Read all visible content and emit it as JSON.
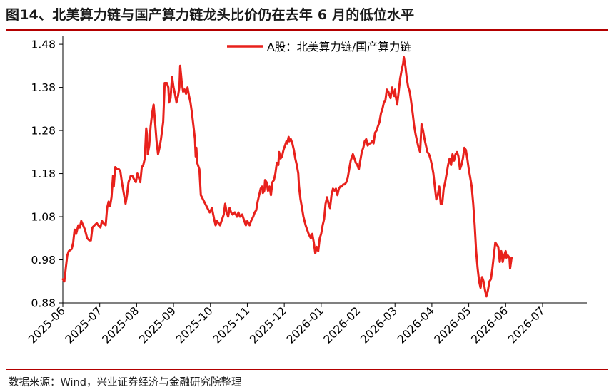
{
  "figure": {
    "title": "图14、北美算力链与国产算力链龙头比价仍在去年 6 月的低位水平",
    "source": "数据来源：Wind，兴业证券经济与金融研究院整理"
  },
  "chart_data": {
    "type": "line",
    "title": "",
    "xlabel": "",
    "ylabel": "",
    "ylim": [
      0.88,
      1.5
    ],
    "yticks": [
      "0.88",
      "0.98",
      "1.08",
      "1.18",
      "1.28",
      "1.38",
      "1.48"
    ],
    "xticks": [
      "2025-06",
      "2025-07",
      "2025-08",
      "2025-09",
      "2025-10",
      "2025-11",
      "2025-12",
      "2026-01",
      "2026-02",
      "2026-03",
      "2026-04",
      "2026-05",
      "2026-06",
      "2026-07"
    ],
    "xlim_months": [
      0,
      14.2
    ],
    "grid": false,
    "legend_position": "top-center",
    "color": "#e8211c",
    "series": [
      {
        "name": "A股：北美算力链/国产算力链",
        "points": [
          [
            0.0,
            0.935
          ],
          [
            0.04,
            0.93
          ],
          [
            0.08,
            0.96
          ],
          [
            0.12,
            0.99
          ],
          [
            0.16,
            1.0
          ],
          [
            0.24,
            1.005
          ],
          [
            0.28,
            1.02
          ],
          [
            0.32,
            1.05
          ],
          [
            0.36,
            1.04
          ],
          [
            0.42,
            1.06
          ],
          [
            0.46,
            1.055
          ],
          [
            0.5,
            1.07
          ],
          [
            0.55,
            1.06
          ],
          [
            0.6,
            1.05
          ],
          [
            0.66,
            1.03
          ],
          [
            0.72,
            1.025
          ],
          [
            0.76,
            1.025
          ],
          [
            0.8,
            1.055
          ],
          [
            0.86,
            1.06
          ],
          [
            0.92,
            1.065
          ],
          [
            0.96,
            1.06
          ],
          [
            1.02,
            1.055
          ],
          [
            1.06,
            1.07
          ],
          [
            1.1,
            1.065
          ],
          [
            1.16,
            1.06
          ],
          [
            1.2,
            1.1
          ],
          [
            1.24,
            1.115
          ],
          [
            1.28,
            1.105
          ],
          [
            1.32,
            1.125
          ],
          [
            1.36,
            1.175
          ],
          [
            1.38,
            1.15
          ],
          [
            1.42,
            1.195
          ],
          [
            1.46,
            1.19
          ],
          [
            1.52,
            1.19
          ],
          [
            1.56,
            1.185
          ],
          [
            1.6,
            1.16
          ],
          [
            1.66,
            1.13
          ],
          [
            1.7,
            1.11
          ],
          [
            1.74,
            1.13
          ],
          [
            1.78,
            1.16
          ],
          [
            1.84,
            1.175
          ],
          [
            1.88,
            1.175
          ],
          [
            1.94,
            1.165
          ],
          [
            1.98,
            1.16
          ],
          [
            2.02,
            1.18
          ],
          [
            2.06,
            1.17
          ],
          [
            2.1,
            1.16
          ],
          [
            2.14,
            1.195
          ],
          [
            2.18,
            1.2
          ],
          [
            2.22,
            1.215
          ],
          [
            2.26,
            1.285
          ],
          [
            2.28,
            1.27
          ],
          [
            2.3,
            1.225
          ],
          [
            2.34,
            1.245
          ],
          [
            2.38,
            1.29
          ],
          [
            2.42,
            1.32
          ],
          [
            2.46,
            1.34
          ],
          [
            2.5,
            1.3
          ],
          [
            2.54,
            1.255
          ],
          [
            2.58,
            1.225
          ],
          [
            2.62,
            1.24
          ],
          [
            2.66,
            1.26
          ],
          [
            2.72,
            1.3
          ],
          [
            2.76,
            1.39
          ],
          [
            2.82,
            1.39
          ],
          [
            2.86,
            1.38
          ],
          [
            2.88,
            1.345
          ],
          [
            2.92,
            1.355
          ],
          [
            2.96,
            1.405
          ],
          [
            3.0,
            1.38
          ],
          [
            3.04,
            1.365
          ],
          [
            3.08,
            1.345
          ],
          [
            3.12,
            1.36
          ],
          [
            3.16,
            1.38
          ],
          [
            3.18,
            1.43
          ],
          [
            3.22,
            1.395
          ],
          [
            3.26,
            1.37
          ],
          [
            3.3,
            1.375
          ],
          [
            3.34,
            1.365
          ],
          [
            3.38,
            1.38
          ],
          [
            3.42,
            1.36
          ],
          [
            3.46,
            1.345
          ],
          [
            3.5,
            1.32
          ],
          [
            3.54,
            1.29
          ],
          [
            3.58,
            1.26
          ],
          [
            3.6,
            1.22
          ],
          [
            3.62,
            1.24
          ],
          [
            3.64,
            1.205
          ],
          [
            3.7,
            1.19
          ],
          [
            3.74,
            1.13
          ],
          [
            3.8,
            1.12
          ],
          [
            3.86,
            1.11
          ],
          [
            3.92,
            1.1
          ],
          [
            3.98,
            1.09
          ],
          [
            4.04,
            1.1
          ],
          [
            4.1,
            1.075
          ],
          [
            4.14,
            1.06
          ],
          [
            4.18,
            1.07
          ],
          [
            4.22,
            1.065
          ],
          [
            4.26,
            1.06
          ],
          [
            4.32,
            1.075
          ],
          [
            4.36,
            1.085
          ],
          [
            4.4,
            1.11
          ],
          [
            4.44,
            1.09
          ],
          [
            4.48,
            1.08
          ],
          [
            4.52,
            1.1
          ],
          [
            4.56,
            1.09
          ],
          [
            4.6,
            1.085
          ],
          [
            4.66,
            1.09
          ],
          [
            4.72,
            1.08
          ],
          [
            4.76,
            1.09
          ],
          [
            4.8,
            1.08
          ],
          [
            4.86,
            1.085
          ],
          [
            4.92,
            1.07
          ],
          [
            4.96,
            1.06
          ],
          [
            5.0,
            1.07
          ],
          [
            5.06,
            1.06
          ],
          [
            5.1,
            1.07
          ],
          [
            5.16,
            1.08
          ],
          [
            5.2,
            1.09
          ],
          [
            5.24,
            1.095
          ],
          [
            5.28,
            1.115
          ],
          [
            5.32,
            1.13
          ],
          [
            5.36,
            1.145
          ],
          [
            5.4,
            1.15
          ],
          [
            5.42,
            1.135
          ],
          [
            5.46,
            1.14
          ],
          [
            5.48,
            1.165
          ],
          [
            5.52,
            1.16
          ],
          [
            5.56,
            1.14
          ],
          [
            5.6,
            1.15
          ],
          [
            5.64,
            1.13
          ],
          [
            5.68,
            1.16
          ],
          [
            5.72,
            1.165
          ],
          [
            5.76,
            1.18
          ],
          [
            5.8,
            1.205
          ],
          [
            5.84,
            1.2
          ],
          [
            5.86,
            1.23
          ],
          [
            5.9,
            1.215
          ],
          [
            5.94,
            1.22
          ],
          [
            5.98,
            1.235
          ],
          [
            6.02,
            1.245
          ],
          [
            6.06,
            1.255
          ],
          [
            6.08,
            1.25
          ],
          [
            6.12,
            1.265
          ],
          [
            6.14,
            1.255
          ],
          [
            6.18,
            1.26
          ],
          [
            6.22,
            1.25
          ],
          [
            6.26,
            1.235
          ],
          [
            6.3,
            1.215
          ],
          [
            6.34,
            1.2
          ],
          [
            6.38,
            1.18
          ],
          [
            6.4,
            1.15
          ],
          [
            6.44,
            1.12
          ],
          [
            6.48,
            1.1
          ],
          [
            6.52,
            1.08
          ],
          [
            6.58,
            1.06
          ],
          [
            6.62,
            1.05
          ],
          [
            6.66,
            1.04
          ],
          [
            6.72,
            1.03
          ],
          [
            6.76,
            1.04
          ],
          [
            6.8,
            1.02
          ],
          [
            6.84,
            0.995
          ],
          [
            6.88,
            1.01
          ],
          [
            6.92,
            1.0
          ],
          [
            6.96,
            1.03
          ],
          [
            7.0,
            1.04
          ],
          [
            7.04,
            1.06
          ],
          [
            7.08,
            1.075
          ],
          [
            7.12,
            1.11
          ],
          [
            7.16,
            1.125
          ],
          [
            7.2,
            1.11
          ],
          [
            7.24,
            1.1
          ],
          [
            7.28,
            1.13
          ],
          [
            7.32,
            1.145
          ],
          [
            7.36,
            1.14
          ],
          [
            7.4,
            1.145
          ],
          [
            7.44,
            1.13
          ],
          [
            7.48,
            1.145
          ],
          [
            7.52,
            1.15
          ],
          [
            7.56,
            1.15
          ],
          [
            7.6,
            1.155
          ],
          [
            7.64,
            1.155
          ],
          [
            7.68,
            1.16
          ],
          [
            7.72,
            1.17
          ],
          [
            7.76,
            1.19
          ],
          [
            7.8,
            1.21
          ],
          [
            7.84,
            1.22
          ],
          [
            7.86,
            1.225
          ],
          [
            7.9,
            1.215
          ],
          [
            7.94,
            1.205
          ],
          [
            7.98,
            1.2
          ],
          [
            8.02,
            1.19
          ],
          [
            8.06,
            1.21
          ],
          [
            8.1,
            1.23
          ],
          [
            8.14,
            1.24
          ],
          [
            8.18,
            1.255
          ],
          [
            8.22,
            1.26
          ],
          [
            8.26,
            1.245
          ],
          [
            8.3,
            1.25
          ],
          [
            8.34,
            1.25
          ],
          [
            8.38,
            1.255
          ],
          [
            8.42,
            1.25
          ],
          [
            8.46,
            1.275
          ],
          [
            8.5,
            1.28
          ],
          [
            8.54,
            1.29
          ],
          [
            8.58,
            1.3
          ],
          [
            8.62,
            1.32
          ],
          [
            8.66,
            1.33
          ],
          [
            8.7,
            1.345
          ],
          [
            8.74,
            1.35
          ],
          [
            8.78,
            1.375
          ],
          [
            8.82,
            1.37
          ],
          [
            8.86,
            1.36
          ],
          [
            8.88,
            1.355
          ],
          [
            8.92,
            1.38
          ],
          [
            8.94,
            1.37
          ],
          [
            8.98,
            1.36
          ],
          [
            9.0,
            1.375
          ],
          [
            9.02,
            1.36
          ],
          [
            9.06,
            1.34
          ],
          [
            9.1,
            1.37
          ],
          [
            9.14,
            1.4
          ],
          [
            9.18,
            1.42
          ],
          [
            9.22,
            1.435
          ],
          [
            9.24,
            1.45
          ],
          [
            9.28,
            1.43
          ],
          [
            9.32,
            1.4
          ],
          [
            9.36,
            1.38
          ],
          [
            9.4,
            1.37
          ],
          [
            9.44,
            1.345
          ],
          [
            9.48,
            1.32
          ],
          [
            9.52,
            1.29
          ],
          [
            9.56,
            1.27
          ],
          [
            9.6,
            1.255
          ],
          [
            9.64,
            1.24
          ],
          [
            9.68,
            1.23
          ],
          [
            9.72,
            1.295
          ],
          [
            9.76,
            1.28
          ],
          [
            9.8,
            1.26
          ],
          [
            9.84,
            1.245
          ],
          [
            9.88,
            1.23
          ],
          [
            9.92,
            1.225
          ],
          [
            9.96,
            1.215
          ],
          [
            10.0,
            1.2
          ],
          [
            10.04,
            1.18
          ],
          [
            10.08,
            1.15
          ],
          [
            10.12,
            1.12
          ],
          [
            10.16,
            1.13
          ],
          [
            10.2,
            1.15
          ],
          [
            10.24,
            1.11
          ],
          [
            10.28,
            1.11
          ],
          [
            10.32,
            1.145
          ],
          [
            10.36,
            1.16
          ],
          [
            10.4,
            1.18
          ],
          [
            10.44,
            1.2
          ],
          [
            10.48,
            1.215
          ],
          [
            10.52,
            1.2
          ],
          [
            10.56,
            1.225
          ],
          [
            10.6,
            1.21
          ],
          [
            10.64,
            1.225
          ],
          [
            10.68,
            1.23
          ],
          [
            10.72,
            1.22
          ],
          [
            10.76,
            1.19
          ],
          [
            10.8,
            1.2
          ],
          [
            10.84,
            1.215
          ],
          [
            10.88,
            1.24
          ],
          [
            10.92,
            1.235
          ],
          [
            10.96,
            1.215
          ],
          [
            11.0,
            1.19
          ],
          [
            11.04,
            1.17
          ],
          [
            11.08,
            1.15
          ],
          [
            11.12,
            1.11
          ],
          [
            11.16,
            1.06
          ],
          [
            11.2,
            1.0
          ],
          [
            11.24,
            0.96
          ],
          [
            11.28,
            0.93
          ],
          [
            11.32,
            0.915
          ],
          [
            11.36,
            0.94
          ],
          [
            11.4,
            0.93
          ],
          [
            11.44,
            0.91
          ],
          [
            11.48,
            0.895
          ],
          [
            11.52,
            0.91
          ],
          [
            11.56,
            0.93
          ],
          [
            11.6,
            0.935
          ],
          [
            11.64,
            0.96
          ],
          [
            11.68,
            0.99
          ],
          [
            11.72,
            1.02
          ],
          [
            11.76,
            1.015
          ],
          [
            11.8,
            1.01
          ],
          [
            11.84,
            0.975
          ],
          [
            11.88,
            1.0
          ],
          [
            11.92,
            0.975
          ],
          [
            11.96,
            0.99
          ],
          [
            12.0,
            1.0
          ],
          [
            12.02,
            0.985
          ],
          [
            12.06,
            0.99
          ],
          [
            12.1,
            0.985
          ],
          [
            12.12,
            0.96
          ],
          [
            12.16,
            0.985
          ]
        ]
      }
    ]
  }
}
